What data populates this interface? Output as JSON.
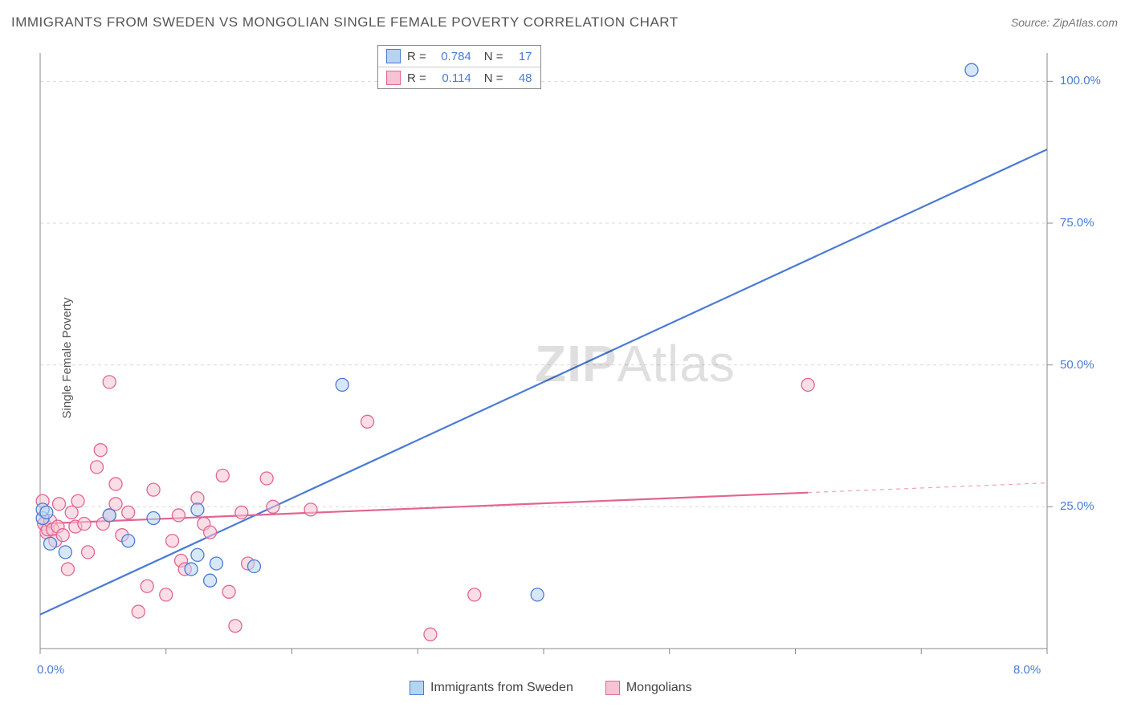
{
  "header": {
    "title": "IMMIGRANTS FROM SWEDEN VS MONGOLIAN SINGLE FEMALE POVERTY CORRELATION CHART",
    "source": "Source: ZipAtlas.com"
  },
  "axes": {
    "ylabel": "Single Female Poverty",
    "xlim": [
      0.0,
      8.0
    ],
    "ylim": [
      0.0,
      105.0
    ],
    "xticks": [
      0.0,
      1.0,
      2.0,
      3.0,
      4.0,
      5.0,
      6.0,
      7.0,
      8.0
    ],
    "xtick_labels": {
      "0": "0.0%",
      "8": "8.0%"
    },
    "yticks": [
      25.0,
      50.0,
      75.0,
      100.0
    ],
    "ytick_labels": [
      "25.0%",
      "50.0%",
      "75.0%",
      "100.0%"
    ],
    "grid_color": "#d9d9d9",
    "axis_color": "#888888",
    "background": "#ffffff",
    "tick_value_color": "#4a7bd4",
    "label_color": "#555555",
    "label_fontsize": 15,
    "title_fontsize": 17
  },
  "legend_top": {
    "rows": [
      {
        "swatch_fill": "#b7d3f2",
        "swatch_stroke": "#4a7bd4",
        "r_label": "R =",
        "r_value": "0.784",
        "n_label": "N =",
        "n_value": "17"
      },
      {
        "swatch_fill": "#f6c3d2",
        "swatch_stroke": "#e36492",
        "r_label": "R =",
        "r_value": "0.114",
        "n_label": "N =",
        "n_value": "48"
      }
    ]
  },
  "legend_bottom": {
    "items": [
      {
        "swatch_fill": "#b7d3f2",
        "swatch_stroke": "#4a7bd4",
        "label": "Immigrants from Sweden"
      },
      {
        "swatch_fill": "#f6c3d2",
        "swatch_stroke": "#e36492",
        "label": "Mongolians"
      }
    ]
  },
  "watermark": {
    "bold": "ZIP",
    "light": "Atlas"
  },
  "series": {
    "sweden": {
      "color_stroke": "#4a7bd4",
      "color_fill": "#b7d3f2",
      "fill_opacity": 0.55,
      "marker_radius": 8,
      "line_width": 2.2,
      "trend": {
        "x1": 0.0,
        "y1": 6.0,
        "x2": 8.0,
        "y2": 88.0
      },
      "points": [
        [
          0.02,
          23.0
        ],
        [
          0.02,
          24.5
        ],
        [
          0.05,
          24.0
        ],
        [
          0.08,
          18.5
        ],
        [
          0.2,
          17.0
        ],
        [
          0.55,
          23.5
        ],
        [
          0.7,
          19.0
        ],
        [
          0.9,
          23.0
        ],
        [
          1.2,
          14.0
        ],
        [
          1.25,
          16.5
        ],
        [
          1.25,
          24.5
        ],
        [
          1.35,
          12.0
        ],
        [
          1.7,
          14.5
        ],
        [
          1.4,
          15.0
        ],
        [
          2.4,
          46.5
        ],
        [
          3.95,
          9.5
        ],
        [
          7.4,
          102.0
        ]
      ]
    },
    "mongolians": {
      "color_stroke": "#e36492",
      "color_fill": "#f6c3d2",
      "fill_opacity": 0.55,
      "marker_radius": 8,
      "line_width": 2.2,
      "trend_solid": {
        "x1": 0.0,
        "y1": 22.0,
        "x2": 6.1,
        "y2": 27.5
      },
      "trend_dash": {
        "x1": 6.1,
        "y1": 27.5,
        "x2": 8.0,
        "y2": 29.2
      },
      "points": [
        [
          0.02,
          26.0
        ],
        [
          0.03,
          22.0
        ],
        [
          0.05,
          20.5
        ],
        [
          0.06,
          21.0
        ],
        [
          0.08,
          22.5
        ],
        [
          0.1,
          21.0
        ],
        [
          0.12,
          19.0
        ],
        [
          0.14,
          21.5
        ],
        [
          0.15,
          25.5
        ],
        [
          0.18,
          20.0
        ],
        [
          0.22,
          14.0
        ],
        [
          0.25,
          24.0
        ],
        [
          0.28,
          21.5
        ],
        [
          0.3,
          26.0
        ],
        [
          0.35,
          22.0
        ],
        [
          0.38,
          17.0
        ],
        [
          0.45,
          32.0
        ],
        [
          0.48,
          35.0
        ],
        [
          0.5,
          22.0
        ],
        [
          0.55,
          47.0
        ],
        [
          0.55,
          23.5
        ],
        [
          0.6,
          29.0
        ],
        [
          0.6,
          25.5
        ],
        [
          0.65,
          20.0
        ],
        [
          0.7,
          24.0
        ],
        [
          0.78,
          6.5
        ],
        [
          0.85,
          11.0
        ],
        [
          0.9,
          28.0
        ],
        [
          1.0,
          9.5
        ],
        [
          1.05,
          19.0
        ],
        [
          1.1,
          23.5
        ],
        [
          1.12,
          15.5
        ],
        [
          1.15,
          14.0
        ],
        [
          1.25,
          26.5
        ],
        [
          1.3,
          22.0
        ],
        [
          1.35,
          20.5
        ],
        [
          1.45,
          30.5
        ],
        [
          1.5,
          10.0
        ],
        [
          1.55,
          4.0
        ],
        [
          1.6,
          24.0
        ],
        [
          1.65,
          15.0
        ],
        [
          1.8,
          30.0
        ],
        [
          1.85,
          25.0
        ],
        [
          2.15,
          24.5
        ],
        [
          2.6,
          40.0
        ],
        [
          3.1,
          2.5
        ],
        [
          3.45,
          9.5
        ],
        [
          6.1,
          46.5
        ]
      ]
    }
  }
}
